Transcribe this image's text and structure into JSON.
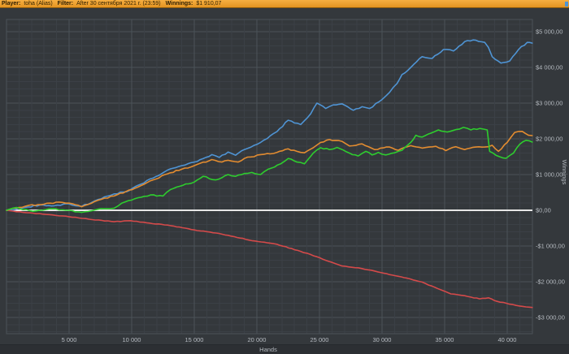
{
  "header": {
    "player_label": "Player:",
    "player_value": "toha (Alias)",
    "filter_label": "Filter:",
    "filter_value": "After 30 сентября 2021 г. (23:59)",
    "winnings_label": "Winnings:",
    "winnings_value": "$1 910,07",
    "bar_color": "#eea032",
    "corner_marker_color": "#4f94d4"
  },
  "chart_data": {
    "type": "line",
    "title": "",
    "xlabel": "Hands",
    "ylabel": "Winnings",
    "xlim": [
      0,
      42000
    ],
    "ylim": [
      -3450,
      5340
    ],
    "grid": {
      "minor_x_step": 1000,
      "major_x_step": 5000,
      "minor_y_step": 200,
      "major_y_step": 1000,
      "minor_color": "#3b4046",
      "major_color": "#4b5258"
    },
    "zero_line": {
      "value": 0,
      "color": "#e6e6e6"
    },
    "x_ticks": [
      {
        "value": 5000,
        "label": "5 000"
      },
      {
        "value": 10000,
        "label": "10 000"
      },
      {
        "value": 15000,
        "label": "15 000"
      },
      {
        "value": 20000,
        "label": "20 000"
      },
      {
        "value": 25000,
        "label": "25 000"
      },
      {
        "value": 30000,
        "label": "30 000"
      },
      {
        "value": 35000,
        "label": "35 000"
      },
      {
        "value": 40000,
        "label": "40 000"
      }
    ],
    "y_ticks": [
      {
        "value": 5000,
        "label": "$5 000,00"
      },
      {
        "value": 4000,
        "label": "$4 000,00"
      },
      {
        "value": 3000,
        "label": "$3 000,00"
      },
      {
        "value": 2000,
        "label": "$2 000,00"
      },
      {
        "value": 1000,
        "label": "$1 000,00"
      },
      {
        "value": 0,
        "label": "$0,00"
      },
      {
        "value": -1000,
        "label": "-$1 000,00"
      },
      {
        "value": -2000,
        "label": "-$2 000,00"
      },
      {
        "value": -3000,
        "label": "-$3 000,00"
      }
    ],
    "series": [
      {
        "name": "blue-line",
        "color": "#4f94d4",
        "jitter": 40,
        "points": [
          [
            0,
            0
          ],
          [
            1200,
            60
          ],
          [
            2700,
            150
          ],
          [
            3600,
            120
          ],
          [
            5000,
            180
          ],
          [
            6000,
            110
          ],
          [
            7300,
            300
          ],
          [
            8600,
            460
          ],
          [
            9600,
            520
          ],
          [
            10500,
            700
          ],
          [
            11700,
            900
          ],
          [
            13100,
            1160
          ],
          [
            14000,
            1250
          ],
          [
            15000,
            1350
          ],
          [
            16400,
            1560
          ],
          [
            17000,
            1480
          ],
          [
            17700,
            1630
          ],
          [
            18300,
            1540
          ],
          [
            19000,
            1700
          ],
          [
            20300,
            1900
          ],
          [
            21600,
            2200
          ],
          [
            22500,
            2520
          ],
          [
            23500,
            2400
          ],
          [
            24300,
            2700
          ],
          [
            24800,
            3000
          ],
          [
            25500,
            2850
          ],
          [
            26100,
            2950
          ],
          [
            26800,
            2980
          ],
          [
            27700,
            2800
          ],
          [
            28400,
            2900
          ],
          [
            29000,
            2850
          ],
          [
            30000,
            3100
          ],
          [
            30600,
            3300
          ],
          [
            31200,
            3550
          ],
          [
            31600,
            3800
          ],
          [
            32300,
            4000
          ],
          [
            33200,
            4300
          ],
          [
            34000,
            4250
          ],
          [
            34900,
            4500
          ],
          [
            35700,
            4460
          ],
          [
            36600,
            4720
          ],
          [
            37500,
            4760
          ],
          [
            38200,
            4700
          ],
          [
            38500,
            4560
          ],
          [
            38800,
            4300
          ],
          [
            39500,
            4120
          ],
          [
            40200,
            4180
          ],
          [
            40900,
            4500
          ],
          [
            41600,
            4700
          ],
          [
            42000,
            4680
          ]
        ]
      },
      {
        "name": "red-line",
        "color": "#d44a4a",
        "jitter": 15,
        "points": [
          [
            0,
            0
          ],
          [
            800,
            -40
          ],
          [
            2100,
            -80
          ],
          [
            3400,
            -120
          ],
          [
            5000,
            -180
          ],
          [
            6600,
            -250
          ],
          [
            8600,
            -320
          ],
          [
            9900,
            -290
          ],
          [
            11200,
            -350
          ],
          [
            13100,
            -430
          ],
          [
            15000,
            -550
          ],
          [
            17000,
            -650
          ],
          [
            17700,
            -700
          ],
          [
            19600,
            -850
          ],
          [
            21600,
            -950
          ],
          [
            23500,
            -1150
          ],
          [
            24800,
            -1300
          ],
          [
            25500,
            -1400
          ],
          [
            26800,
            -1560
          ],
          [
            28100,
            -1610
          ],
          [
            29400,
            -1700
          ],
          [
            30600,
            -1800
          ],
          [
            32000,
            -1900
          ],
          [
            33200,
            -2010
          ],
          [
            34500,
            -2200
          ],
          [
            35500,
            -2340
          ],
          [
            36600,
            -2390
          ],
          [
            37800,
            -2480
          ],
          [
            38500,
            -2450
          ],
          [
            39200,
            -2550
          ],
          [
            39900,
            -2600
          ],
          [
            41000,
            -2680
          ],
          [
            42000,
            -2720
          ]
        ]
      },
      {
        "name": "orange-line",
        "color": "#e38c30",
        "jitter": 35,
        "points": [
          [
            0,
            0
          ],
          [
            1000,
            80
          ],
          [
            1800,
            140
          ],
          [
            3000,
            170
          ],
          [
            4200,
            230
          ],
          [
            5000,
            200
          ],
          [
            6000,
            100
          ],
          [
            7300,
            280
          ],
          [
            8600,
            400
          ],
          [
            10500,
            650
          ],
          [
            11700,
            850
          ],
          [
            13100,
            1050
          ],
          [
            14000,
            1150
          ],
          [
            15000,
            1250
          ],
          [
            16400,
            1420
          ],
          [
            17200,
            1350
          ],
          [
            17700,
            1400
          ],
          [
            18500,
            1350
          ],
          [
            19000,
            1450
          ],
          [
            20300,
            1560
          ],
          [
            21600,
            1620
          ],
          [
            22500,
            1720
          ],
          [
            23200,
            1650
          ],
          [
            23800,
            1610
          ],
          [
            24500,
            1750
          ],
          [
            25100,
            1900
          ],
          [
            25800,
            1980
          ],
          [
            26800,
            1930
          ],
          [
            27400,
            1800
          ],
          [
            28400,
            1860
          ],
          [
            29400,
            1700
          ],
          [
            30600,
            1770
          ],
          [
            31300,
            1680
          ],
          [
            32300,
            1810
          ],
          [
            33200,
            1740
          ],
          [
            34300,
            1790
          ],
          [
            35100,
            1670
          ],
          [
            35900,
            1780
          ],
          [
            36600,
            1700
          ],
          [
            37500,
            1770
          ],
          [
            38200,
            1770
          ],
          [
            38800,
            1820
          ],
          [
            39300,
            1650
          ],
          [
            40000,
            1900
          ],
          [
            40600,
            2180
          ],
          [
            41200,
            2210
          ],
          [
            41700,
            2100
          ],
          [
            42000,
            2090
          ]
        ]
      },
      {
        "name": "green-line",
        "color": "#2ecc2e",
        "jitter": 35,
        "points": [
          [
            0,
            0
          ],
          [
            800,
            80
          ],
          [
            2100,
            -30
          ],
          [
            3400,
            40
          ],
          [
            5000,
            0
          ],
          [
            6000,
            -60
          ],
          [
            7300,
            30
          ],
          [
            8600,
            60
          ],
          [
            9200,
            200
          ],
          [
            10500,
            350
          ],
          [
            11500,
            430
          ],
          [
            12500,
            400
          ],
          [
            13100,
            580
          ],
          [
            14100,
            700
          ],
          [
            15000,
            790
          ],
          [
            15700,
            950
          ],
          [
            16700,
            850
          ],
          [
            17700,
            1000
          ],
          [
            18300,
            950
          ],
          [
            19000,
            1030
          ],
          [
            19600,
            1060
          ],
          [
            20300,
            1000
          ],
          [
            20900,
            1150
          ],
          [
            21900,
            1300
          ],
          [
            22500,
            1450
          ],
          [
            23200,
            1350
          ],
          [
            23800,
            1300
          ],
          [
            24500,
            1600
          ],
          [
            25100,
            1750
          ],
          [
            25800,
            1700
          ],
          [
            26400,
            1760
          ],
          [
            27400,
            1600
          ],
          [
            28100,
            1520
          ],
          [
            28700,
            1650
          ],
          [
            29200,
            1550
          ],
          [
            29700,
            1620
          ],
          [
            30300,
            1550
          ],
          [
            31000,
            1610
          ],
          [
            31600,
            1680
          ],
          [
            32300,
            1900
          ],
          [
            32700,
            2100
          ],
          [
            33200,
            2050
          ],
          [
            33900,
            2160
          ],
          [
            34500,
            2250
          ],
          [
            35200,
            2190
          ],
          [
            35900,
            2260
          ],
          [
            36500,
            2320
          ],
          [
            37100,
            2250
          ],
          [
            37800,
            2290
          ],
          [
            38400,
            2250
          ],
          [
            38600,
            1650
          ],
          [
            39100,
            1540
          ],
          [
            39900,
            1455
          ],
          [
            40500,
            1600
          ],
          [
            41000,
            1850
          ],
          [
            41500,
            1960
          ],
          [
            42000,
            1910
          ]
        ]
      }
    ],
    "axis_label_color": "#b5bac0",
    "background_color": "#34383c"
  }
}
